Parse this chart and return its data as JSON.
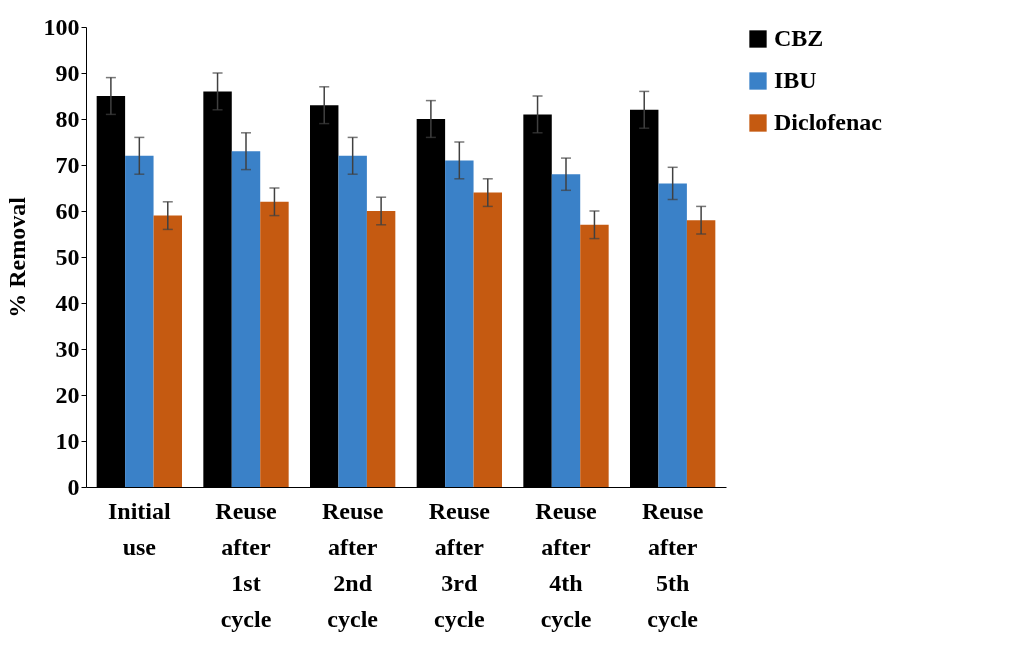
{
  "chart_data": {
    "type": "bar",
    "ylabel": "% Removal",
    "categories": [
      "Initial use",
      "Reuse after 1st cycle",
      "Reuse after 2nd cycle",
      "Reuse after 3rd cycle",
      "Reuse after 4th cycle",
      "Reuse after 5th cycle"
    ],
    "series": [
      {
        "name": "CBZ",
        "color": "#000000",
        "values": [
          85,
          86,
          83,
          80,
          81,
          82
        ],
        "errors": [
          4,
          4,
          4,
          4,
          4,
          4
        ]
      },
      {
        "name": "IBU",
        "color": "#3a81c8",
        "values": [
          72,
          73,
          72,
          71,
          68,
          66
        ],
        "errors": [
          4,
          4,
          4,
          4,
          3.5,
          3.5
        ]
      },
      {
        "name": "Diclofenac",
        "color": "#c55a11",
        "values": [
          59,
          62,
          60,
          64,
          57,
          58
        ],
        "errors": [
          3,
          3,
          3,
          3,
          3,
          3
        ]
      }
    ],
    "ylim": [
      0,
      100
    ],
    "yticks": [
      0,
      10,
      20,
      30,
      40,
      50,
      60,
      70,
      80,
      90,
      100
    ],
    "grid": false,
    "legend": "right"
  }
}
